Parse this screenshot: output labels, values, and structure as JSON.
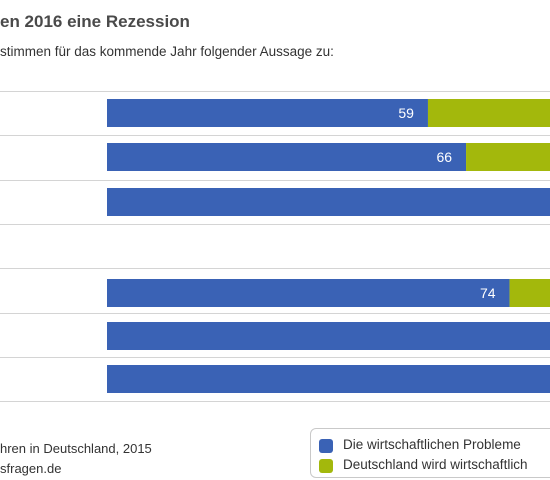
{
  "header": {
    "title": "en 2016 eine Rezession",
    "subtitle": "stimmen für das kommende Jahr folgender Aussage zu:"
  },
  "footer": {
    "source_line1": "hren in Deutschland, 2015",
    "source_line2": "sfragen.de"
  },
  "legend": {
    "items": [
      {
        "label": "Die wirtschaftlichen Probleme",
        "color": "#3a62b5"
      },
      {
        "label": "Deutschland wird wirtschaftlich",
        "color": "#a3b80c"
      }
    ]
  },
  "chart_data": {
    "type": "bar",
    "orientation": "horizontal",
    "stacked": true,
    "categories": [
      "",
      "",
      "",
      "",
      "",
      "",
      ""
    ],
    "series": [
      {
        "name": "Die wirtschaftlichen Probleme",
        "color": "#3a62b5",
        "values": [
          59,
          66,
          null,
          null,
          74,
          null,
          null
        ],
        "labels": [
          "59",
          "66",
          "",
          "",
          "74",
          "",
          ""
        ]
      },
      {
        "name": "Deutschland wird wirtschaftlich",
        "color": "#a3b80c",
        "values": [
          null,
          null,
          null,
          null,
          null,
          null,
          null
        ],
        "labels": [
          "",
          "",
          "",
          "",
          "",
          "",
          ""
        ]
      }
    ],
    "grid": false,
    "legend_position": "bottom-right"
  }
}
